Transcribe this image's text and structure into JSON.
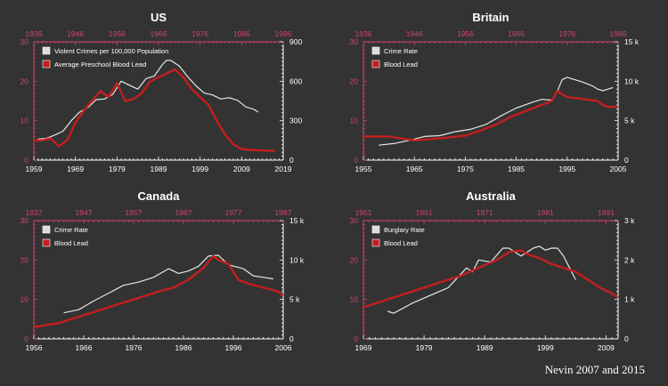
{
  "credit": "Nevin 2007 and 2015",
  "colors": {
    "background": "#333333",
    "axis_left": "#d1436b",
    "axis_right": "#ffffff",
    "crime_line": "#e6e6e6",
    "lead_line": "#c41e1e",
    "text": "#ffffff"
  },
  "chart_data": [
    {
      "type": "line",
      "title": "US",
      "bottom_axis": {
        "range": [
          1959,
          2019
        ],
        "ticks": [
          "1959",
          "1969",
          "1979",
          "1989",
          "1999",
          "2009",
          "2019"
        ]
      },
      "top_axis": {
        "range": [
          1936,
          1996
        ],
        "ticks": [
          "1936",
          "1946",
          "1956",
          "1966",
          "1976",
          "1986",
          "1996"
        ]
      },
      "left_axis": {
        "range": [
          0,
          30
        ],
        "ticks": [
          "0",
          "10",
          "20",
          "30"
        ]
      },
      "right_axis": {
        "range": [
          0,
          900
        ],
        "ticks": [
          "0",
          "300",
          "600",
          "900"
        ]
      },
      "legend_position": "top-left",
      "series": [
        {
          "name": "Violent Crimes per 100,000 Population",
          "axes": "bottom-right",
          "x": [
            1960,
            1962,
            1964,
            1966,
            1968,
            1970,
            1972,
            1974,
            1976,
            1978,
            1980,
            1982,
            1984,
            1986,
            1988,
            1990,
            1991,
            1992,
            1994,
            1996,
            1998,
            2000,
            2002,
            2004,
            2006,
            2008,
            2010,
            2012,
            2013
          ],
          "y": [
            160,
            165,
            190,
            220,
            300,
            365,
            400,
            460,
            465,
            500,
            600,
            570,
            540,
            620,
            640,
            730,
            760,
            758,
            715,
            635,
            565,
            510,
            495,
            465,
            475,
            455,
            405,
            385,
            365
          ]
        },
        {
          "name": "Average Preschool Blood Lead",
          "axes": "bottom-left",
          "x": [
            1959,
            1961,
            1963,
            1965,
            1967,
            1969,
            1971,
            1973,
            1975,
            1977,
            1979,
            1981,
            1983,
            1985,
            1987,
            1989,
            1991,
            1993,
            1995,
            1997,
            1999,
            2001,
            2003,
            2005,
            2007,
            2009,
            2011,
            2013,
            2015,
            2017
          ],
          "y": [
            5,
            5,
            5.5,
            3.5,
            5,
            9.5,
            12.5,
            15,
            17.5,
            16,
            19.5,
            15,
            15.5,
            17,
            20,
            21,
            22,
            23,
            21,
            18,
            16,
            14,
            10,
            6.5,
            4,
            2.8,
            2.6,
            2.5,
            2.4,
            2.3
          ]
        }
      ]
    },
    {
      "type": "line",
      "title": "Britain",
      "bottom_axis": {
        "range": [
          1955,
          2005
        ],
        "ticks": [
          "1955",
          "1965",
          "1975",
          "1985",
          "1995",
          "2005"
        ]
      },
      "top_axis": {
        "range": [
          1936,
          1986
        ],
        "ticks": [
          "1936",
          "1946",
          "1956",
          "1966",
          "1976",
          "1986"
        ]
      },
      "left_axis": {
        "range": [
          0,
          30
        ],
        "ticks": [
          "0",
          "10",
          "20",
          "30"
        ]
      },
      "right_axis": {
        "range": [
          0,
          15
        ],
        "ticks": [
          "0",
          "5 k",
          "10 k",
          "15 k"
        ]
      },
      "legend_position": "top-left",
      "series": [
        {
          "name": "Crime Rate",
          "axes": "bottom-right",
          "x": [
            1958,
            1961,
            1964,
            1967,
            1970,
            1973,
            1976,
            1979,
            1982,
            1985,
            1988,
            1990,
            1992,
            1993,
            1994,
            1995,
            1996,
            1998,
            2000,
            2001,
            2002,
            2003,
            2004
          ],
          "y": [
            1.9,
            2.1,
            2.5,
            3.0,
            3.1,
            3.6,
            3.9,
            4.5,
            5.6,
            6.6,
            7.3,
            7.7,
            7.6,
            8.6,
            10.2,
            10.5,
            10.3,
            9.9,
            9.4,
            9.0,
            8.8,
            9.0,
            9.2
          ]
        },
        {
          "name": "Blood Lead",
          "axes": "bottom-left",
          "x": [
            1955,
            1960,
            1965,
            1970,
            1975,
            1978,
            1981,
            1984,
            1987,
            1990,
            1991,
            1992,
            1993,
            1995,
            1998,
            2001,
            2002,
            2003,
            2005
          ],
          "y": [
            6,
            6,
            5,
            5.5,
            6.2,
            7.5,
            9,
            11,
            12.5,
            14,
            14.5,
            15,
            17.5,
            16,
            15.5,
            15,
            14,
            13.5,
            13.5
          ]
        }
      ]
    },
    {
      "type": "line",
      "title": "Canada",
      "bottom_axis": {
        "range": [
          1956,
          2006
        ],
        "ticks": [
          "1956",
          "1966",
          "1976",
          "1986",
          "1996",
          "2006"
        ]
      },
      "top_axis": {
        "range": [
          1937,
          1987
        ],
        "ticks": [
          "1937",
          "1947",
          "1957",
          "1967",
          "1977",
          "1987"
        ]
      },
      "left_axis": {
        "range": [
          0,
          30
        ],
        "ticks": [
          "0",
          "10",
          "20",
          "30"
        ]
      },
      "right_axis": {
        "range": [
          0,
          15
        ],
        "ticks": [
          "0",
          "5 k",
          "10 k",
          "15 k"
        ]
      },
      "legend_position": "top-left",
      "series": [
        {
          "name": "Crime Rate",
          "axes": "bottom-right",
          "x": [
            1962,
            1965,
            1968,
            1971,
            1974,
            1977,
            1980,
            1983,
            1985,
            1987,
            1989,
            1991,
            1993,
            1995,
            1998,
            2000,
            2002,
            2004
          ],
          "y": [
            3.3,
            3.7,
            4.8,
            5.8,
            6.8,
            7.2,
            7.8,
            8.9,
            8.3,
            8.6,
            9.2,
            10.5,
            10.6,
            9.4,
            8.9,
            8.0,
            7.8,
            7.6
          ]
        },
        {
          "name": "Blood Lead",
          "axes": "bottom-left",
          "x": [
            1956,
            1961,
            1966,
            1971,
            1976,
            1981,
            1984,
            1987,
            1990,
            1992,
            1993,
            1995,
            1997,
            1999,
            2002,
            2005,
            2006
          ],
          "y": [
            3,
            4,
            6,
            8,
            10,
            12,
            13,
            15,
            18,
            21,
            20,
            19,
            15,
            14,
            13,
            12,
            11
          ]
        }
      ]
    },
    {
      "type": "line",
      "title": "Australia",
      "bottom_axis": {
        "range": [
          1969,
          2011
        ],
        "ticks": [
          "1969",
          "1979",
          "1989",
          "1999",
          "2009"
        ]
      },
      "top_axis": {
        "range": [
          1951,
          1993
        ],
        "ticks": [
          "1951",
          "1961",
          "1971",
          "1981",
          "1991"
        ]
      },
      "left_axis": {
        "range": [
          0,
          30
        ],
        "ticks": [
          "0",
          "10",
          "20",
          "30"
        ]
      },
      "right_axis": {
        "range": [
          0,
          3
        ],
        "ticks": [
          "0",
          "1 k",
          "2 k",
          "3 k"
        ]
      },
      "legend_position": "top-left",
      "series": [
        {
          "name": "Burglary Rate",
          "axes": "bottom-right",
          "x": [
            1973,
            1974,
            1977,
            1980,
            1983,
            1986,
            1987,
            1988,
            1990,
            1992,
            1993,
            1995,
            1996,
            1997,
            1998,
            1999,
            2000,
            2001,
            2002,
            2003,
            2004
          ],
          "y": [
            0.7,
            0.65,
            0.9,
            1.1,
            1.3,
            1.8,
            1.7,
            2.0,
            1.95,
            2.3,
            2.3,
            2.1,
            2.2,
            2.3,
            2.35,
            2.25,
            2.3,
            2.3,
            2.1,
            1.8,
            1.5
          ]
        },
        {
          "name": "Blood Lead",
          "axes": "bottom-left",
          "x": [
            1969,
            1973,
            1977,
            1981,
            1985,
            1988,
            1991,
            1993,
            1995,
            1996,
            1998,
            2000,
            2002,
            2004,
            2006,
            2008,
            2010,
            2011
          ],
          "y": [
            8,
            10,
            12,
            14,
            16,
            18,
            20,
            22,
            22.5,
            21.5,
            20.5,
            19,
            18,
            17,
            15,
            13,
            11.5,
            10.5
          ]
        }
      ]
    }
  ]
}
